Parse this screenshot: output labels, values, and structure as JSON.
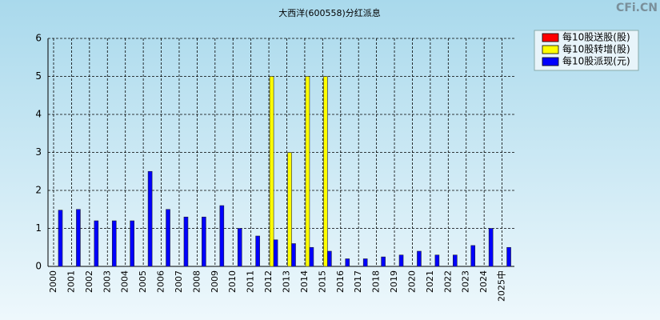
{
  "chart_data": {
    "type": "bar",
    "title": "大西洋(600558)分红派息",
    "watermark": "CFi.CN",
    "categories": [
      "2000",
      "2001",
      "2002",
      "2003",
      "2004",
      "2005",
      "2006",
      "2007",
      "2008",
      "2009",
      "2010",
      "2011",
      "2012",
      "2013",
      "2014",
      "2015",
      "2016",
      "2017",
      "2018",
      "2019",
      "2020",
      "2021",
      "2022",
      "2023",
      "2024",
      "2025中"
    ],
    "series": [
      {
        "name": "每10股送股(股)",
        "color": "#ff0000",
        "values": [
          0,
          0,
          0,
          0,
          0,
          0,
          0,
          0,
          0,
          0,
          0,
          0,
          0,
          0,
          0,
          0,
          0,
          0,
          0,
          0,
          0,
          0,
          0,
          0,
          0,
          0
        ]
      },
      {
        "name": "每10股转增(股)",
        "color": "#ffff00",
        "values": [
          0,
          0,
          0,
          0,
          0,
          0,
          0,
          0,
          0,
          0,
          0,
          0,
          5,
          3,
          5,
          5,
          0,
          0,
          0,
          0,
          0,
          0,
          0,
          0,
          0,
          0
        ]
      },
      {
        "name": "每10股派现(元)",
        "color": "#0000ff",
        "values": [
          1.48,
          1.5,
          1.2,
          1.2,
          1.2,
          2.5,
          1.5,
          1.3,
          1.3,
          1.6,
          1.0,
          0.8,
          0.7,
          0.6,
          0.5,
          0.4,
          0.2,
          0.2,
          0.25,
          0.3,
          0.4,
          0.3,
          0.3,
          0.55,
          1.0,
          0.5
        ]
      }
    ],
    "ylim": [
      0,
      6
    ],
    "yticks": [
      0,
      1,
      2,
      3,
      4,
      5,
      6
    ],
    "grid": true,
    "legend": "top-right"
  }
}
